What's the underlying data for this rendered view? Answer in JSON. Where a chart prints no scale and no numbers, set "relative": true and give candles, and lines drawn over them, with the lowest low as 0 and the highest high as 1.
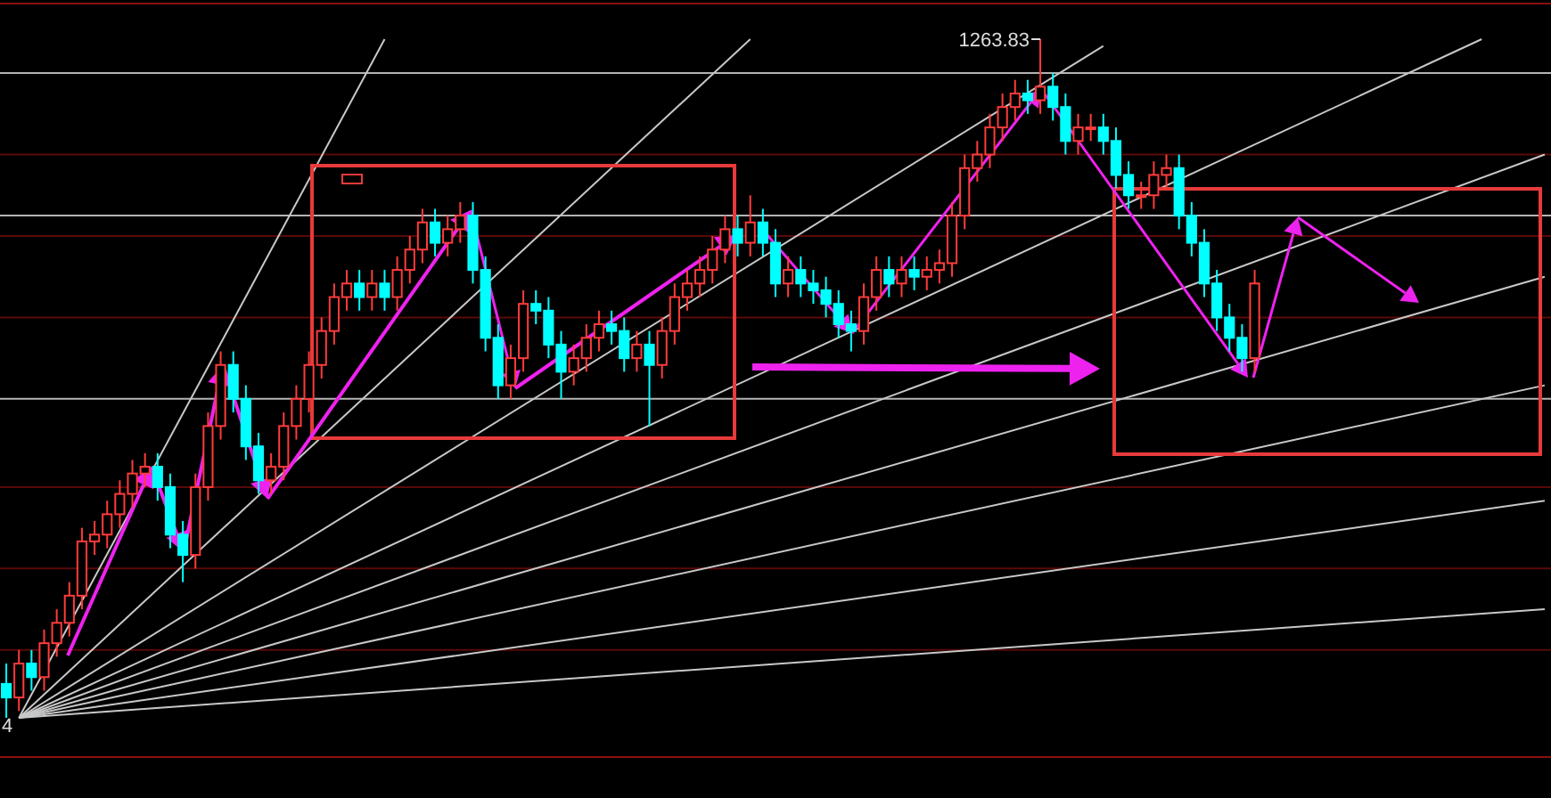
{
  "chart_data": {
    "type": "candlestick",
    "relative": true,
    "categories": [
      null,
      null,
      null,
      null,
      null,
      null,
      null,
      null,
      null,
      null,
      null,
      null,
      null,
      null,
      null,
      null,
      null,
      null,
      null,
      null,
      null,
      null,
      null,
      null,
      null,
      null,
      null,
      null,
      null,
      null,
      null,
      null,
      null,
      null,
      null,
      null,
      null,
      null,
      null,
      null,
      null,
      null,
      null,
      null,
      null,
      null,
      null,
      null,
      null,
      null,
      null,
      null,
      null,
      null,
      null,
      null,
      null,
      null,
      null,
      null,
      null,
      null,
      null,
      null,
      null,
      null,
      null,
      null,
      null,
      null,
      null,
      null,
      null,
      null,
      null,
      null,
      null,
      null,
      null,
      null,
      null,
      null,
      null,
      null,
      null,
      null,
      null,
      null,
      null,
      null,
      null,
      null,
      null,
      null,
      null,
      null,
      null,
      null,
      null,
      null,
      null,
      null,
      null,
      null,
      null,
      null,
      null,
      null,
      null,
      null,
      null,
      null,
      null,
      null,
      null,
      null,
      null,
      null,
      null,
      null,
      null,
      null,
      null
    ],
    "ohlc": [
      [
        0.05,
        0.08,
        0,
        0.03
      ],
      [
        0.03,
        0.1,
        0.01,
        0.08
      ],
      [
        0.08,
        0.1,
        0.04,
        0.06
      ],
      [
        0.06,
        0.13,
        0.04,
        0.11
      ],
      [
        0.11,
        0.16,
        0.09,
        0.14
      ],
      [
        0.14,
        0.2,
        0.12,
        0.18
      ],
      [
        0.18,
        0.28,
        0.16,
        0.26
      ],
      [
        0.26,
        0.29,
        0.24,
        0.27
      ],
      [
        0.27,
        0.32,
        0.25,
        0.3
      ],
      [
        0.3,
        0.35,
        0.28,
        0.33
      ],
      [
        0.33,
        0.38,
        0.31,
        0.36
      ],
      [
        0.36,
        0.39,
        0.34,
        0.37
      ],
      [
        0.37,
        0.39,
        0.32,
        0.34
      ],
      [
        0.34,
        0.36,
        0.25,
        0.27
      ],
      [
        0.27,
        0.29,
        0.2,
        0.24
      ],
      [
        0.24,
        0.36,
        0.22,
        0.34
      ],
      [
        0.34,
        0.45,
        0.32,
        0.43
      ],
      [
        0.43,
        0.54,
        0.41,
        0.52
      ],
      [
        0.52,
        0.54,
        0.45,
        0.47
      ],
      [
        0.47,
        0.49,
        0.38,
        0.4
      ],
      [
        0.4,
        0.42,
        0.33,
        0.35
      ],
      [
        0.35,
        0.39,
        0.33,
        0.37
      ],
      [
        0.37,
        0.45,
        0.35,
        0.43
      ],
      [
        0.43,
        0.49,
        0.41,
        0.47
      ],
      [
        0.47,
        0.54,
        0.45,
        0.52
      ],
      [
        0.52,
        0.59,
        0.5,
        0.57
      ],
      [
        0.57,
        0.64,
        0.55,
        0.62
      ],
      [
        0.62,
        0.66,
        0.6,
        0.64
      ],
      [
        0.64,
        0.66,
        0.6,
        0.62
      ],
      [
        0.62,
        0.66,
        0.6,
        0.64
      ],
      [
        0.64,
        0.66,
        0.6,
        0.62
      ],
      [
        0.62,
        0.68,
        0.6,
        0.66
      ],
      [
        0.66,
        0.71,
        0.64,
        0.69
      ],
      [
        0.69,
        0.75,
        0.67,
        0.73
      ],
      [
        0.73,
        0.75,
        0.68,
        0.7
      ],
      [
        0.7,
        0.74,
        0.68,
        0.72
      ],
      [
        0.72,
        0.76,
        0.7,
        0.74
      ],
      [
        0.74,
        0.76,
        0.64,
        0.66
      ],
      [
        0.66,
        0.68,
        0.54,
        0.56
      ],
      [
        0.56,
        0.58,
        0.47,
        0.49
      ],
      [
        0.49,
        0.55,
        0.47,
        0.53
      ],
      [
        0.53,
        0.63,
        0.51,
        0.61
      ],
      [
        0.61,
        0.63,
        0.58,
        0.6
      ],
      [
        0.6,
        0.62,
        0.53,
        0.55
      ],
      [
        0.55,
        0.57,
        0.47,
        0.51
      ],
      [
        0.51,
        0.55,
        0.49,
        0.53
      ],
      [
        0.53,
        0.58,
        0.51,
        0.56
      ],
      [
        0.56,
        0.6,
        0.54,
        0.58
      ],
      [
        0.58,
        0.6,
        0.55,
        0.57
      ],
      [
        0.57,
        0.59,
        0.51,
        0.53
      ],
      [
        0.53,
        0.57,
        0.51,
        0.55
      ],
      [
        0.55,
        0.57,
        0.43,
        0.52
      ],
      [
        0.52,
        0.59,
        0.5,
        0.57
      ],
      [
        0.57,
        0.64,
        0.55,
        0.62
      ],
      [
        0.62,
        0.66,
        0.6,
        0.64
      ],
      [
        0.64,
        0.68,
        0.62,
        0.66
      ],
      [
        0.66,
        0.71,
        0.64,
        0.69
      ],
      [
        0.69,
        0.74,
        0.67,
        0.72
      ],
      [
        0.72,
        0.74,
        0.68,
        0.7
      ],
      [
        0.7,
        0.77,
        0.68,
        0.73
      ],
      [
        0.73,
        0.75,
        0.68,
        0.7
      ],
      [
        0.7,
        0.72,
        0.62,
        0.64
      ],
      [
        0.64,
        0.68,
        0.62,
        0.66
      ],
      [
        0.66,
        0.68,
        0.62,
        0.64
      ],
      [
        0.64,
        0.66,
        0.61,
        0.63
      ],
      [
        0.63,
        0.65,
        0.59,
        0.61
      ],
      [
        0.61,
        0.63,
        0.56,
        0.58
      ],
      [
        0.58,
        0.6,
        0.54,
        0.57
      ],
      [
        0.57,
        0.64,
        0.55,
        0.62
      ],
      [
        0.62,
        0.68,
        0.6,
        0.66
      ],
      [
        0.66,
        0.68,
        0.62,
        0.64
      ],
      [
        0.64,
        0.68,
        0.62,
        0.66
      ],
      [
        0.66,
        0.68,
        0.63,
        0.65
      ],
      [
        0.65,
        0.68,
        0.63,
        0.66
      ],
      [
        0.66,
        0.69,
        0.64,
        0.67
      ],
      [
        0.67,
        0.76,
        0.65,
        0.74
      ],
      [
        0.74,
        0.83,
        0.72,
        0.81
      ],
      [
        0.81,
        0.85,
        0.79,
        0.83
      ],
      [
        0.83,
        0.89,
        0.81,
        0.87
      ],
      [
        0.87,
        0.92,
        0.85,
        0.9
      ],
      [
        0.9,
        0.94,
        0.88,
        0.92
      ],
      [
        0.92,
        0.94,
        0.89,
        0.91
      ],
      [
        0.91,
        1,
        0.89,
        0.93
      ],
      [
        0.93,
        0.95,
        0.88,
        0.9
      ],
      [
        0.9,
        0.92,
        0.83,
        0.85
      ],
      [
        0.85,
        0.89,
        0.83,
        0.87
      ],
      [
        0.87,
        0.89,
        0.85,
        0.87
      ],
      [
        0.87,
        0.89,
        0.83,
        0.85
      ],
      [
        0.85,
        0.87,
        0.78,
        0.8
      ],
      [
        0.8,
        0.82,
        0.75,
        0.77
      ],
      [
        0.77,
        0.79,
        0.75,
        0.77
      ],
      [
        0.77,
        0.82,
        0.75,
        0.8
      ],
      [
        0.8,
        0.83,
        0.78,
        0.81
      ],
      [
        0.81,
        0.83,
        0.72,
        0.74
      ],
      [
        0.74,
        0.76,
        0.68,
        0.7
      ],
      [
        0.7,
        0.72,
        0.62,
        0.64
      ],
      [
        0.64,
        0.66,
        0.57,
        0.59
      ],
      [
        0.59,
        0.61,
        0.54,
        0.56
      ],
      [
        0.56,
        0.58,
        0.51,
        0.53
      ],
      [
        0.53,
        0.66,
        0.51,
        0.64
      ],
      null,
      null,
      null,
      null,
      null,
      null,
      null,
      null,
      null,
      null,
      null,
      null,
      null,
      null,
      null,
      null,
      null,
      null,
      null,
      null,
      null,
      null,
      null
    ],
    "series": [
      {
        "type": "line",
        "color": "#c8c8c8",
        "values": [
          null,
          0,
          null,
          null,
          null,
          null,
          null,
          null,
          null,
          null,
          null,
          null,
          null,
          null,
          null,
          null,
          null,
          null,
          null,
          null,
          null,
          null,
          null,
          null,
          null,
          null,
          null,
          null,
          null,
          null,
          1,
          null,
          null,
          null,
          null,
          null,
          null,
          null,
          null,
          null,
          null,
          null,
          null,
          null,
          null,
          null,
          null,
          null,
          null,
          null,
          null,
          null,
          null,
          null,
          null,
          null,
          null,
          null,
          null,
          null,
          null,
          null,
          null,
          null,
          null,
          null,
          null,
          null,
          null,
          null,
          null,
          null,
          null,
          null,
          null,
          null,
          null,
          null,
          null,
          null,
          null,
          null,
          null,
          null,
          null,
          null,
          null,
          null,
          null,
          null,
          null,
          null,
          null,
          null,
          null,
          null,
          null,
          null,
          null,
          null,
          null,
          null,
          null,
          null,
          null,
          null,
          null,
          null,
          null,
          null,
          null,
          null,
          null,
          null,
          null,
          null,
          null,
          null,
          null,
          null,
          null,
          null,
          null
        ]
      },
      {
        "type": "line",
        "color": "#c8c8c8",
        "values": [
          null,
          0,
          null,
          null,
          null,
          null,
          null,
          null,
          null,
          null,
          null,
          null,
          null,
          null,
          null,
          null,
          null,
          null,
          null,
          null,
          null,
          null,
          null,
          null,
          null,
          null,
          null,
          null,
          null,
          null,
          null,
          null,
          null,
          null,
          null,
          null,
          null,
          null,
          null,
          null,
          null,
          null,
          null,
          null,
          null,
          null,
          null,
          null,
          null,
          null,
          null,
          null,
          null,
          null,
          null,
          null,
          null,
          null,
          null,
          1,
          null,
          null,
          null,
          null,
          null,
          null,
          null,
          null,
          null,
          null,
          null,
          null,
          null,
          null,
          null,
          null,
          null,
          null,
          null,
          null,
          null,
          null,
          null,
          null,
          null,
          null,
          null,
          null,
          null,
          null,
          null,
          null,
          null,
          null,
          null,
          null,
          null,
          null,
          null,
          null,
          null,
          null,
          null,
          null,
          null,
          null,
          null,
          null,
          null,
          null,
          null,
          null,
          null,
          null,
          null,
          null,
          null,
          null,
          null,
          null,
          null,
          null,
          null
        ]
      },
      {
        "type": "line",
        "color": "#c8c8c8",
        "values": [
          null,
          0,
          null,
          null,
          null,
          null,
          null,
          null,
          null,
          null,
          null,
          null,
          null,
          null,
          null,
          null,
          null,
          null,
          null,
          null,
          null,
          null,
          null,
          null,
          null,
          null,
          null,
          null,
          null,
          null,
          null,
          null,
          null,
          null,
          null,
          null,
          null,
          null,
          null,
          null,
          null,
          null,
          null,
          null,
          null,
          null,
          null,
          null,
          null,
          null,
          null,
          null,
          null,
          null,
          null,
          null,
          null,
          null,
          null,
          null,
          null,
          null,
          null,
          null,
          null,
          null,
          null,
          null,
          null,
          null,
          null,
          null,
          null,
          null,
          null,
          null,
          null,
          null,
          null,
          null,
          null,
          null,
          null,
          null,
          null,
          null,
          null,
          0.99,
          null,
          null,
          null,
          null,
          null,
          null,
          null,
          null,
          null,
          null,
          null,
          null,
          null,
          null,
          null,
          null,
          null,
          null,
          null,
          null,
          null,
          null,
          null,
          null,
          null,
          null,
          null,
          null,
          null,
          null,
          null,
          null,
          null,
          null,
          null
        ]
      },
      {
        "type": "line",
        "color": "#c8c8c8",
        "values": [
          null,
          0,
          null,
          null,
          null,
          null,
          null,
          null,
          null,
          null,
          null,
          null,
          null,
          null,
          null,
          null,
          null,
          null,
          null,
          null,
          null,
          null,
          null,
          null,
          null,
          null,
          null,
          null,
          null,
          null,
          null,
          null,
          null,
          null,
          null,
          null,
          null,
          null,
          null,
          null,
          null,
          null,
          null,
          null,
          null,
          null,
          null,
          null,
          null,
          null,
          null,
          null,
          null,
          null,
          null,
          null,
          null,
          null,
          null,
          null,
          null,
          null,
          null,
          null,
          null,
          null,
          null,
          null,
          null,
          null,
          null,
          null,
          null,
          null,
          null,
          null,
          null,
          null,
          null,
          null,
          null,
          null,
          null,
          null,
          null,
          null,
          null,
          null,
          null,
          null,
          null,
          null,
          null,
          null,
          null,
          null,
          null,
          null,
          null,
          null,
          null,
          null,
          null,
          null,
          null,
          null,
          null,
          null,
          null,
          null,
          null,
          null,
          null,
          null,
          null,
          null,
          null,
          1,
          null,
          null,
          null,
          null,
          null
        ]
      },
      {
        "type": "line",
        "color": "#c8c8c8",
        "values": [
          null,
          0,
          null,
          null,
          null,
          null,
          null,
          null,
          null,
          null,
          null,
          null,
          null,
          null,
          null,
          null,
          null,
          null,
          null,
          null,
          null,
          null,
          null,
          null,
          null,
          null,
          null,
          null,
          null,
          null,
          null,
          null,
          null,
          null,
          null,
          null,
          null,
          null,
          null,
          null,
          null,
          null,
          null,
          null,
          null,
          null,
          null,
          null,
          null,
          null,
          null,
          null,
          null,
          null,
          null,
          null,
          null,
          null,
          null,
          null,
          null,
          null,
          null,
          null,
          null,
          null,
          null,
          null,
          null,
          null,
          null,
          null,
          null,
          null,
          null,
          null,
          null,
          null,
          null,
          null,
          null,
          null,
          null,
          null,
          null,
          null,
          null,
          null,
          null,
          null,
          null,
          null,
          null,
          null,
          null,
          null,
          null,
          null,
          null,
          null,
          null,
          null,
          null,
          null,
          null,
          null,
          null,
          null,
          null,
          null,
          null,
          null,
          null,
          null,
          null,
          null,
          null,
          null,
          null,
          null,
          null,
          null,
          0.83
        ]
      },
      {
        "type": "line",
        "color": "#c8c8c8",
        "values": [
          null,
          0,
          null,
          null,
          null,
          null,
          null,
          null,
          null,
          null,
          null,
          null,
          null,
          null,
          null,
          null,
          null,
          null,
          null,
          null,
          null,
          null,
          null,
          null,
          null,
          null,
          null,
          null,
          null,
          null,
          null,
          null,
          null,
          null,
          null,
          null,
          null,
          null,
          null,
          null,
          null,
          null,
          null,
          null,
          null,
          null,
          null,
          null,
          null,
          null,
          null,
          null,
          null,
          null,
          null,
          null,
          null,
          null,
          null,
          null,
          null,
          null,
          null,
          null,
          null,
          null,
          null,
          null,
          null,
          null,
          null,
          null,
          null,
          null,
          null,
          null,
          null,
          null,
          null,
          null,
          null,
          null,
          null,
          null,
          null,
          null,
          null,
          null,
          null,
          null,
          null,
          null,
          null,
          null,
          null,
          null,
          null,
          null,
          null,
          null,
          null,
          null,
          null,
          null,
          null,
          null,
          null,
          null,
          null,
          null,
          null,
          null,
          null,
          null,
          null,
          null,
          null,
          null,
          null,
          null,
          null,
          null,
          0.65
        ]
      },
      {
        "type": "line",
        "color": "#c8c8c8",
        "values": [
          null,
          0,
          null,
          null,
          null,
          null,
          null,
          null,
          null,
          null,
          null,
          null,
          null,
          null,
          null,
          null,
          null,
          null,
          null,
          null,
          null,
          null,
          null,
          null,
          null,
          null,
          null,
          null,
          null,
          null,
          null,
          null,
          null,
          null,
          null,
          null,
          null,
          null,
          null,
          null,
          null,
          null,
          null,
          null,
          null,
          null,
          null,
          null,
          null,
          null,
          null,
          null,
          null,
          null,
          null,
          null,
          null,
          null,
          null,
          null,
          null,
          null,
          null,
          null,
          null,
          null,
          null,
          null,
          null,
          null,
          null,
          null,
          null,
          null,
          null,
          null,
          null,
          null,
          null,
          null,
          null,
          null,
          null,
          null,
          null,
          null,
          null,
          null,
          null,
          null,
          null,
          null,
          null,
          null,
          null,
          null,
          null,
          null,
          null,
          null,
          null,
          null,
          null,
          null,
          null,
          null,
          null,
          null,
          null,
          null,
          null,
          null,
          null,
          null,
          null,
          null,
          null,
          null,
          null,
          null,
          null,
          null,
          0.49
        ]
      },
      {
        "type": "line",
        "color": "#c8c8c8",
        "values": [
          null,
          0,
          null,
          null,
          null,
          null,
          null,
          null,
          null,
          null,
          null,
          null,
          null,
          null,
          null,
          null,
          null,
          null,
          null,
          null,
          null,
          null,
          null,
          null,
          null,
          null,
          null,
          null,
          null,
          null,
          null,
          null,
          null,
          null,
          null,
          null,
          null,
          null,
          null,
          null,
          null,
          null,
          null,
          null,
          null,
          null,
          null,
          null,
          null,
          null,
          null,
          null,
          null,
          null,
          null,
          null,
          null,
          null,
          null,
          null,
          null,
          null,
          null,
          null,
          null,
          null,
          null,
          null,
          null,
          null,
          null,
          null,
          null,
          null,
          null,
          null,
          null,
          null,
          null,
          null,
          null,
          null,
          null,
          null,
          null,
          null,
          null,
          null,
          null,
          null,
          null,
          null,
          null,
          null,
          null,
          null,
          null,
          null,
          null,
          null,
          null,
          null,
          null,
          null,
          null,
          null,
          null,
          null,
          null,
          null,
          null,
          null,
          null,
          null,
          null,
          null,
          null,
          null,
          null,
          null,
          null,
          null,
          0.32
        ]
      },
      {
        "type": "line",
        "color": "#c8c8c8",
        "values": [
          null,
          0,
          null,
          null,
          null,
          null,
          null,
          null,
          null,
          null,
          null,
          null,
          null,
          null,
          null,
          null,
          null,
          null,
          null,
          null,
          null,
          null,
          null,
          null,
          null,
          null,
          null,
          null,
          null,
          null,
          null,
          null,
          null,
          null,
          null,
          null,
          null,
          null,
          null,
          null,
          null,
          null,
          null,
          null,
          null,
          null,
          null,
          null,
          null,
          null,
          null,
          null,
          null,
          null,
          null,
          null,
          null,
          null,
          null,
          null,
          null,
          null,
          null,
          null,
          null,
          null,
          null,
          null,
          null,
          null,
          null,
          null,
          null,
          null,
          null,
          null,
          null,
          null,
          null,
          null,
          null,
          null,
          null,
          null,
          null,
          null,
          null,
          null,
          null,
          null,
          null,
          null,
          null,
          null,
          null,
          null,
          null,
          null,
          null,
          null,
          null,
          null,
          null,
          null,
          null,
          null,
          null,
          null,
          null,
          null,
          null,
          null,
          null,
          null,
          null,
          null,
          null,
          null,
          null,
          null,
          null,
          null,
          0.16
        ]
      }
    ],
    "ref_lines": [
      {
        "axis": "y",
        "value": 0.83,
        "color": "#5a0a0a"
      },
      {
        "axis": "y",
        "value": 0.71,
        "color": "#5a0a0a"
      },
      {
        "axis": "y",
        "value": 0.59,
        "color": "#5a0a0a"
      },
      {
        "axis": "y",
        "value": 0.34,
        "color": "#5a0a0a"
      },
      {
        "axis": "y",
        "value": 0.22,
        "color": "#5a0a0a"
      },
      {
        "axis": "y",
        "value": 0.1,
        "color": "#5a0a0a"
      },
      {
        "axis": "y",
        "value": 0.95,
        "color": "#b4b4b4"
      },
      {
        "axis": "y",
        "value": 0.74,
        "color": "#b4b4b4"
      },
      {
        "axis": "y",
        "value": 0.47,
        "color": "#b4b4b4"
      }
    ],
    "annotations": [
      "1263.83",
      "4"
    ]
  }
}
